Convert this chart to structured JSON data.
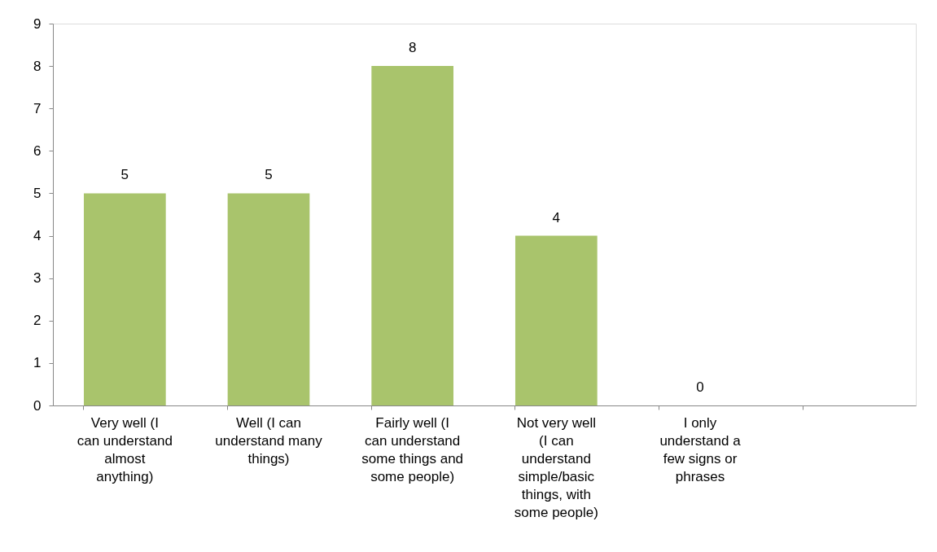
{
  "chart_data": {
    "type": "bar",
    "categories": [
      "Very well (I can understand almost anything)",
      "Well (I can understand many things)",
      "Fairly well (I can understand some things and some people)",
      "Not very well (I can understand simple/basic things, with some people)",
      "I only understand a few signs or phrases",
      null
    ],
    "values": [
      5,
      5,
      8,
      4,
      0,
      null
    ],
    "color": "#a9c46c",
    "ylim": [
      0,
      9
    ],
    "yticks": [
      0,
      1,
      2,
      3,
      4,
      5,
      6,
      7,
      8,
      9
    ],
    "grid": false,
    "data_labels": true
  }
}
